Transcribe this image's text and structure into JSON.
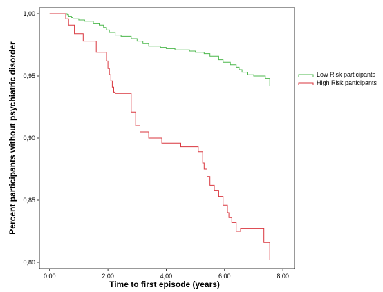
{
  "chart_data": {
    "type": "line",
    "title": "",
    "xlabel": "Time to first episode (years)",
    "ylabel": "Percent participants without psychiatric disorder",
    "xlim": [
      -0.35,
      8.4
    ],
    "ylim": [
      0.795,
      1.005
    ],
    "x_ticks": [
      0,
      2,
      4,
      6,
      8
    ],
    "x_tick_labels": [
      "0,00",
      "2,00",
      "4,00",
      "6,00",
      "8,00"
    ],
    "y_ticks": [
      0.8,
      0.85,
      0.9,
      0.95,
      1.0
    ],
    "y_tick_labels": [
      "0,80",
      "0,85",
      "0,90",
      "0,95",
      "1,00"
    ],
    "grid": false,
    "legend_position": "right",
    "line_style": "step",
    "series": [
      {
        "name": "Low Risk participants",
        "color": "#4cb84c",
        "x": [
          0,
          0.6,
          0.65,
          0.75,
          0.8,
          1.0,
          1.2,
          1.5,
          1.7,
          1.85,
          1.95,
          2.05,
          2.25,
          2.45,
          2.8,
          3.0,
          3.2,
          3.4,
          3.8,
          4.0,
          4.3,
          4.8,
          5.0,
          5.3,
          5.5,
          5.8,
          5.95,
          6.2,
          6.4,
          6.5,
          6.6,
          6.8,
          7.0,
          7.4,
          7.55,
          7.55
        ],
        "y": [
          1.0,
          0.999,
          0.998,
          0.997,
          0.996,
          0.995,
          0.994,
          0.992,
          0.991,
          0.989,
          0.987,
          0.985,
          0.983,
          0.982,
          0.98,
          0.978,
          0.976,
          0.974,
          0.973,
          0.972,
          0.971,
          0.97,
          0.969,
          0.968,
          0.966,
          0.963,
          0.961,
          0.959,
          0.957,
          0.955,
          0.953,
          0.951,
          0.95,
          0.948,
          0.944,
          0.942
        ]
      },
      {
        "name": "High Risk participants",
        "color": "#d9363e",
        "x": [
          0,
          0.55,
          0.65,
          0.85,
          1.15,
          1.6,
          1.95,
          2.0,
          2.05,
          2.1,
          2.15,
          2.2,
          2.25,
          2.8,
          2.95,
          3.1,
          3.4,
          3.85,
          4.5,
          5.1,
          5.25,
          5.3,
          5.4,
          5.5,
          5.65,
          5.8,
          5.95,
          6.1,
          6.15,
          6.25,
          6.4,
          6.55,
          7.35,
          7.55,
          7.55
        ],
        "y": [
          1.0,
          0.996,
          0.991,
          0.984,
          0.978,
          0.969,
          0.962,
          0.956,
          0.951,
          0.946,
          0.941,
          0.937,
          0.936,
          0.921,
          0.91,
          0.905,
          0.9,
          0.896,
          0.893,
          0.889,
          0.88,
          0.875,
          0.869,
          0.862,
          0.858,
          0.853,
          0.846,
          0.84,
          0.836,
          0.832,
          0.825,
          0.827,
          0.816,
          0.812,
          0.802
        ]
      }
    ]
  }
}
